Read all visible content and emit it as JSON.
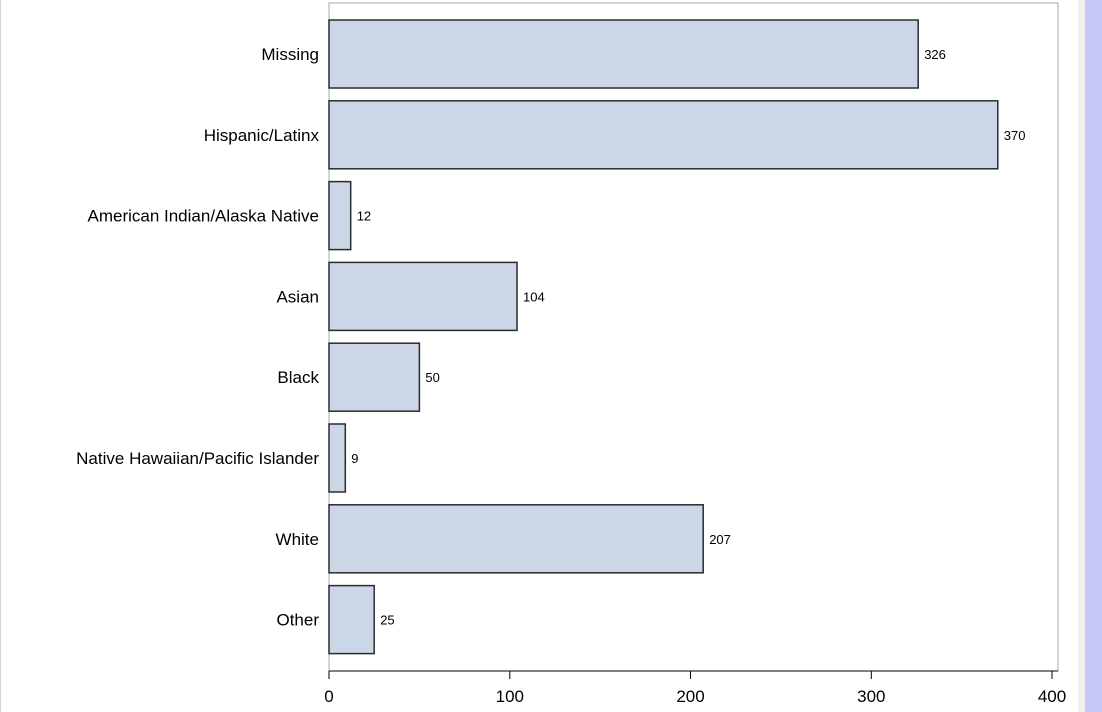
{
  "colors": {
    "bar_fill": "#cbd6e6",
    "bar_stroke": "#2b2b2b",
    "frame": "#a8a8a8",
    "scroll_track": "#c8c8f8"
  },
  "chart_data": {
    "type": "bar",
    "orientation": "horizontal",
    "categories": [
      "Missing",
      "Hispanic/Latinx",
      "American Indian/Alaska Native",
      "Asian",
      "Black",
      "Native Hawaiian/Pacific Islander",
      "White",
      "Other"
    ],
    "values": [
      326,
      370,
      12,
      104,
      50,
      9,
      207,
      25
    ],
    "data_labels": [
      "326",
      "370",
      "12",
      "104",
      "50",
      "9",
      "207",
      "25"
    ],
    "x_ticks": [
      0,
      100,
      200,
      300,
      400
    ],
    "x_tick_labels": [
      "0",
      "100",
      "200",
      "300",
      "400"
    ],
    "xlim": [
      0,
      405
    ],
    "grid": false,
    "legend": "none"
  }
}
